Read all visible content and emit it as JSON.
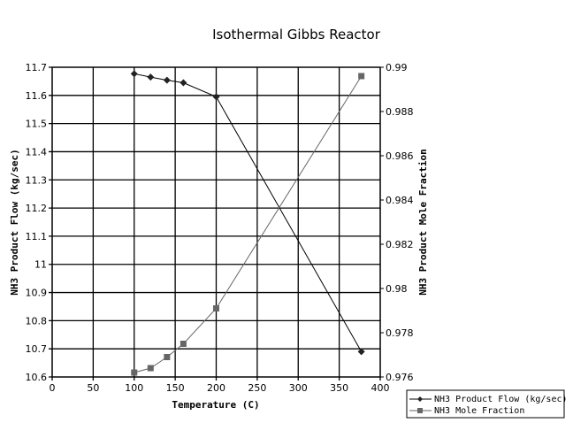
{
  "chart_data": {
    "type": "line",
    "title": "Isothermal Gibbs Reactor",
    "xlabel": "Temperature (C)",
    "ylabel": "NH3 Product Flow (kg/sec)",
    "y2label": "NH3 Product Mole Fraction",
    "xlim": [
      0,
      400
    ],
    "ylim": [
      10.6,
      11.7
    ],
    "y2lim": [
      0.976,
      0.99
    ],
    "xticks": [
      "0",
      "50",
      "100",
      "150",
      "200",
      "250",
      "300",
      "350",
      "400"
    ],
    "yticks": [
      "10.6",
      "10.7",
      "10.8",
      "10.9",
      "11",
      "11.1",
      "11.2",
      "11.3",
      "11.4",
      "11.5",
      "11.6",
      "11.7"
    ],
    "y2ticks": [
      "0.976",
      "0.978",
      "0.98",
      "0.982",
      "0.984",
      "0.986",
      "0.988",
      "0.99"
    ],
    "grid": true,
    "legend_position": "bottom-right",
    "series": [
      {
        "name": "NH3 Product Flow (kg/sec)",
        "axis": "left",
        "marker": "diamond",
        "color": "#000000",
        "x": [
          100,
          120,
          140,
          160,
          200,
          377
        ],
        "y": [
          11.677,
          11.665,
          11.654,
          11.645,
          11.595,
          10.69
        ]
      },
      {
        "name": "NH3 Mole Fraction",
        "axis": "right",
        "marker": "square",
        "color": "#666666",
        "x": [
          100,
          120,
          140,
          160,
          200,
          377
        ],
        "y": [
          0.9762,
          0.9764,
          0.9769,
          0.9775,
          0.9791,
          0.9896
        ]
      }
    ]
  }
}
